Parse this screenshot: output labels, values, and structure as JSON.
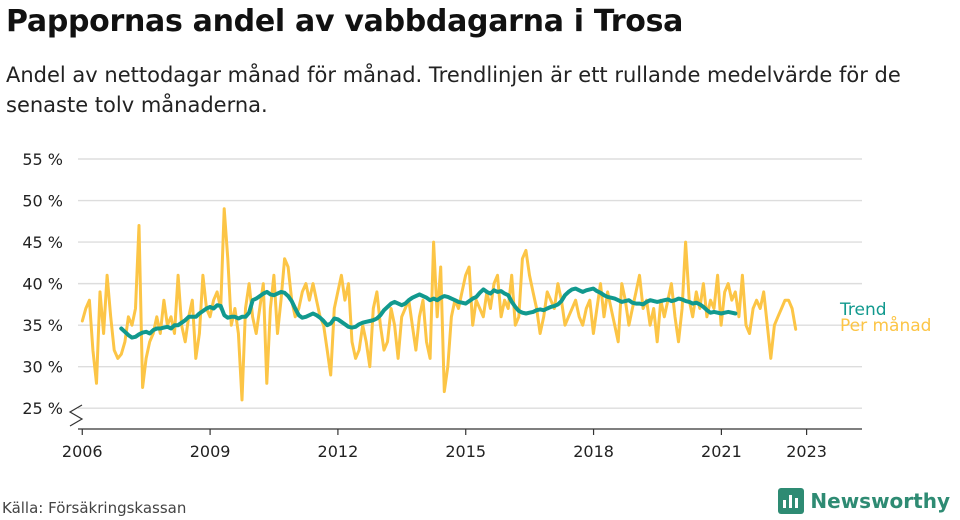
{
  "title": "Pappornas andel av vabbdagarna i Trosa",
  "subtitle": "Andel av nettodagar månad för månad. Trendlinjen är ett rullande medelvärde för de senaste tolv månaderna.",
  "source": "Källa: Försäkringskassan",
  "brand": "Newsworthy",
  "colors": {
    "trend": "#11998e",
    "monthly": "#fcc546",
    "grid": "#dddddd",
    "brand": "#2e8b73"
  },
  "chart_data": {
    "type": "line",
    "xlabel": "",
    "ylabel": "",
    "ylim": [
      25,
      55
    ],
    "xlim": [
      2005.9,
      2024.3
    ],
    "grid": true,
    "y_ticks": [
      25,
      30,
      35,
      40,
      45,
      50,
      55
    ],
    "y_tick_labels": [
      "25 %",
      "30 %",
      "35 %",
      "40 %",
      "45 %",
      "50 %",
      "55 %"
    ],
    "x_ticks": [
      2006,
      2009,
      2012,
      2015,
      2018,
      2021,
      2023
    ],
    "x_tick_labels": [
      "2006",
      "2009",
      "2012",
      "2015",
      "2018",
      "2021",
      "2023"
    ],
    "series": [
      {
        "name": "Per månad",
        "color": "#fcc546",
        "x_start": 2006.0,
        "x_step": 0.0833,
        "values": [
          35.5,
          37,
          38,
          32,
          28,
          39,
          34,
          41,
          36,
          32,
          31,
          31.5,
          33,
          36,
          35,
          37,
          47,
          27.5,
          31,
          33,
          34,
          36,
          34,
          38,
          35,
          36,
          34,
          41,
          35,
          33,
          36,
          38,
          31,
          34,
          41,
          37,
          36,
          38,
          39,
          37,
          49,
          43,
          35,
          37,
          34,
          26,
          37,
          40,
          36,
          34,
          37,
          40,
          28,
          37,
          41,
          34,
          38,
          43,
          42,
          38,
          36,
          37,
          39,
          40,
          38,
          40,
          38,
          36,
          35,
          32,
          29,
          37,
          39,
          41,
          38,
          40,
          33,
          31,
          32,
          35,
          33,
          30,
          37,
          39,
          35,
          32,
          33,
          37,
          35,
          31,
          36,
          37,
          38,
          35,
          32,
          36,
          38,
          33,
          31,
          45,
          36,
          42,
          27,
          30,
          36,
          38,
          37,
          39,
          41,
          42,
          35,
          38,
          37,
          36,
          39,
          37,
          40,
          41,
          36,
          38,
          37,
          41,
          35,
          36,
          43,
          44,
          41,
          39,
          37,
          34,
          36,
          39,
          38,
          37,
          40,
          38,
          35,
          36,
          37,
          38,
          36,
          35,
          37,
          38,
          34,
          37,
          40,
          36,
          39,
          37,
          35,
          33,
          40,
          38,
          35,
          37,
          39,
          41,
          37,
          38,
          35,
          37,
          33,
          38,
          36,
          38,
          40,
          36,
          33,
          37,
          45,
          38,
          36,
          39,
          37,
          40,
          36,
          38,
          37,
          41,
          35,
          39,
          40,
          38,
          39,
          36,
          41,
          35,
          34,
          37,
          38,
          37,
          39,
          35,
          31,
          35,
          36,
          37,
          38,
          38,
          37,
          34.5
        ]
      },
      {
        "name": "Trend",
        "color": "#11998e",
        "x_start": 2006.917,
        "x_step": 0.0833,
        "values": [
          34.6,
          34.2,
          33.8,
          33.5,
          33.6,
          33.9,
          34.1,
          34.2,
          34.0,
          34.4,
          34.6,
          34.6,
          34.7,
          34.8,
          34.6,
          35.0,
          35.0,
          35.3,
          35.6,
          36.0,
          36.0,
          36.0,
          36.4,
          36.7,
          37.0,
          37.2,
          37.0,
          37.4,
          37.3,
          36.2,
          35.9,
          36.0,
          36.0,
          35.8,
          36.0,
          36.0,
          36.5,
          38.0,
          38.2,
          38.5,
          38.8,
          39.0,
          38.7,
          38.6,
          38.8,
          39.0,
          38.9,
          38.5,
          37.9,
          37.0,
          36.2,
          35.9,
          36.0,
          36.2,
          36.4,
          36.2,
          35.9,
          35.5,
          35.0,
          35.2,
          35.8,
          35.7,
          35.4,
          35.1,
          34.8,
          34.7,
          34.8,
          35.1,
          35.3,
          35.4,
          35.5,
          35.6,
          35.8,
          36.2,
          36.8,
          37.2,
          37.6,
          37.8,
          37.6,
          37.4,
          37.6,
          38.0,
          38.3,
          38.5,
          38.7,
          38.5,
          38.3,
          38.0,
          38.2,
          38.0,
          38.3,
          38.5,
          38.4,
          38.2,
          38.0,
          37.8,
          37.7,
          37.6,
          37.9,
          38.2,
          38.4,
          38.9,
          39.3,
          39.0,
          38.8,
          39.2,
          39.0,
          39.1,
          38.8,
          38.6,
          37.8,
          37.2,
          36.7,
          36.5,
          36.4,
          36.5,
          36.6,
          36.8,
          36.9,
          36.8,
          37.0,
          37.2,
          37.3,
          37.5,
          37.9,
          38.6,
          39.0,
          39.3,
          39.4,
          39.2,
          39.0,
          39.2,
          39.3,
          39.4,
          39.1,
          38.9,
          38.6,
          38.4,
          38.3,
          38.2,
          38.0,
          37.8,
          37.9,
          38.0,
          37.7,
          37.6,
          37.6,
          37.5,
          37.8,
          38.0,
          37.9,
          37.8,
          37.9,
          38.0,
          38.1,
          37.9,
          38.0,
          38.2,
          38.1,
          37.9,
          37.8,
          37.6,
          37.7,
          37.5,
          37.2,
          36.8,
          36.5,
          36.6,
          36.5,
          36.4,
          36.5,
          36.6,
          36.5,
          36.4
        ]
      }
    ]
  }
}
